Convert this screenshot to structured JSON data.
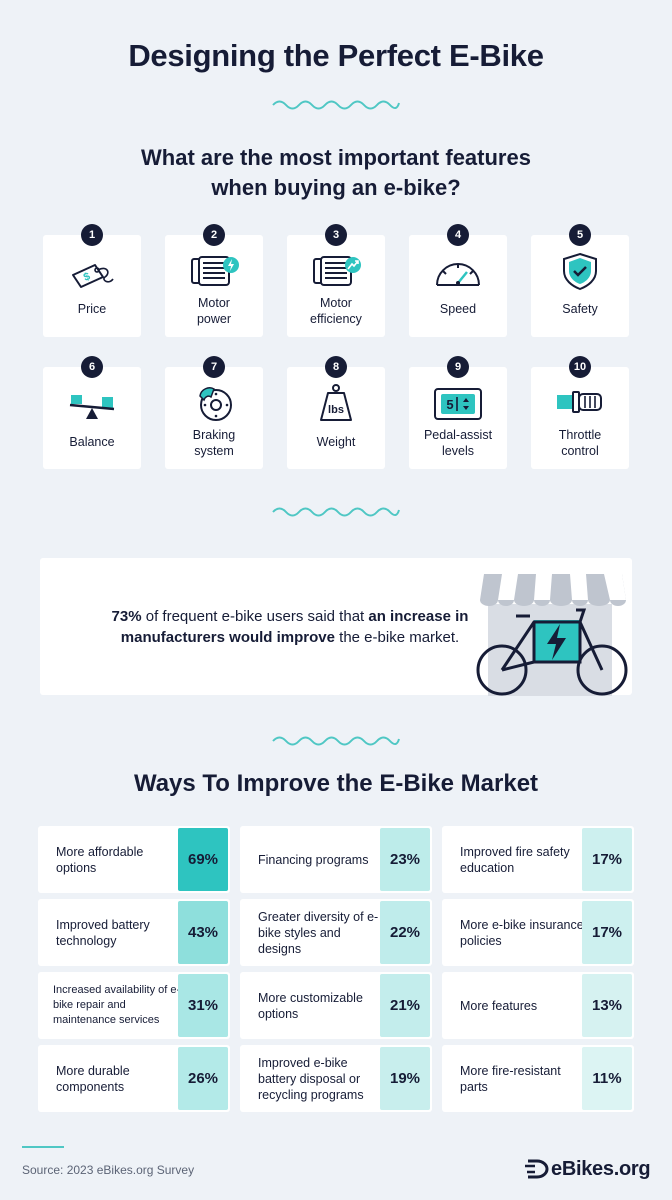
{
  "title": "Designing the Perfect E-Bike",
  "subtitle_line1": "What are the most important features",
  "subtitle_line2": "when buying an e-bike?",
  "features": [
    {
      "num": "1",
      "line1": "Price",
      "line2": "",
      "icon": "price-tag-icon"
    },
    {
      "num": "2",
      "line1": "Motor",
      "line2": "power",
      "icon": "motor-power-icon"
    },
    {
      "num": "3",
      "line1": "Motor",
      "line2": "efficiency",
      "icon": "motor-efficiency-icon"
    },
    {
      "num": "4",
      "line1": "Speed",
      "line2": "",
      "icon": "speedometer-icon"
    },
    {
      "num": "5",
      "line1": "Safety",
      "line2": "",
      "icon": "shield-check-icon"
    },
    {
      "num": "6",
      "line1": "Balance",
      "line2": "",
      "icon": "seesaw-icon"
    },
    {
      "num": "7",
      "line1": "Braking",
      "line2": "system",
      "icon": "brake-disc-icon"
    },
    {
      "num": "8",
      "line1": "Weight",
      "line2": "",
      "icon": "weight-icon"
    },
    {
      "num": "9",
      "line1": "Pedal-assist",
      "line2": "levels",
      "icon": "pedal-assist-display-icon"
    },
    {
      "num": "10",
      "line1": "Throttle",
      "line2": "control",
      "icon": "throttle-icon"
    }
  ],
  "weight_icon_text": "lbs",
  "pedal_icon_text": "5",
  "callout": {
    "pct": "73%",
    "part1": " of frequent e-bike users said that ",
    "bold2": "an increase in manufacturers would improve",
    "part3": " the e-bike market."
  },
  "section2_title": "Ways To Improve the E-Bike Market",
  "improvements": [
    {
      "label": "More affordable options",
      "pct": "69%",
      "value": 69
    },
    {
      "label": "Improved battery technology",
      "pct": "43%",
      "value": 43
    },
    {
      "label": "Increased availability of e-bike repair and maintenance services",
      "pct": "31%",
      "value": 31
    },
    {
      "label": "More durable components",
      "pct": "26%",
      "value": 26
    },
    {
      "label": "Financing programs",
      "pct": "23%",
      "value": 23
    },
    {
      "label": "Greater diversity of e-bike styles and designs",
      "pct": "22%",
      "value": 22
    },
    {
      "label": "More customizable options",
      "pct": "21%",
      "value": 21
    },
    {
      "label": "Improved e-bike battery disposal or recycling programs",
      "pct": "19%",
      "value": 19
    },
    {
      "label": "Improved fire safety education",
      "pct": "17%",
      "value": 17
    },
    {
      "label": "More e-bike insurance policies",
      "pct": "17%",
      "value": 17
    },
    {
      "label": "More features",
      "pct": "13%",
      "value": 13
    },
    {
      "label": "More fire-resistant parts",
      "pct": "11%",
      "value": 11
    }
  ],
  "colors": {
    "background": "#eef2f7",
    "navy": "#161c36",
    "teal": "#2ec4c0",
    "teal_light": "#c9efee"
  },
  "source": "Source: 2023 eBikes.org Survey",
  "brand": "eBikes.org"
}
